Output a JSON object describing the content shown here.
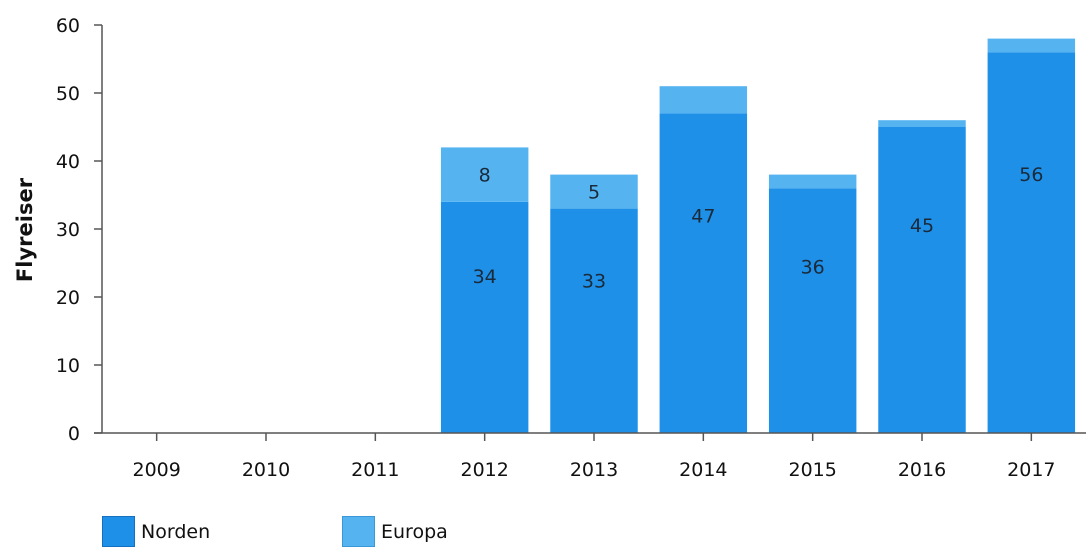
{
  "chart_data": {
    "type": "bar",
    "stacked": true,
    "categories": [
      "2009",
      "2010",
      "2011",
      "2012",
      "2013",
      "2014",
      "2015",
      "2016",
      "2017"
    ],
    "series": [
      {
        "name": "Norden",
        "color": "#1e90e8",
        "values": [
          0,
          0,
          0,
          34,
          33,
          47,
          36,
          45,
          56
        ],
        "labels": [
          "",
          "",
          "",
          "34",
          "33",
          "47",
          "36",
          "45",
          "56"
        ]
      },
      {
        "name": "Europa",
        "color": "#55b4f0",
        "values": [
          0,
          0,
          0,
          8,
          5,
          4,
          2,
          1,
          2
        ],
        "labels": [
          "",
          "",
          "",
          "8",
          "5",
          "",
          "",
          "",
          ""
        ]
      }
    ],
    "title": "",
    "xlabel": "",
    "ylabel": "Flyreiser",
    "ylim": [
      0,
      60
    ],
    "yticks": [
      "0",
      "10",
      "20",
      "30",
      "40",
      "50",
      "60"
    ],
    "grid": false,
    "legend_position": "bottom-left"
  }
}
